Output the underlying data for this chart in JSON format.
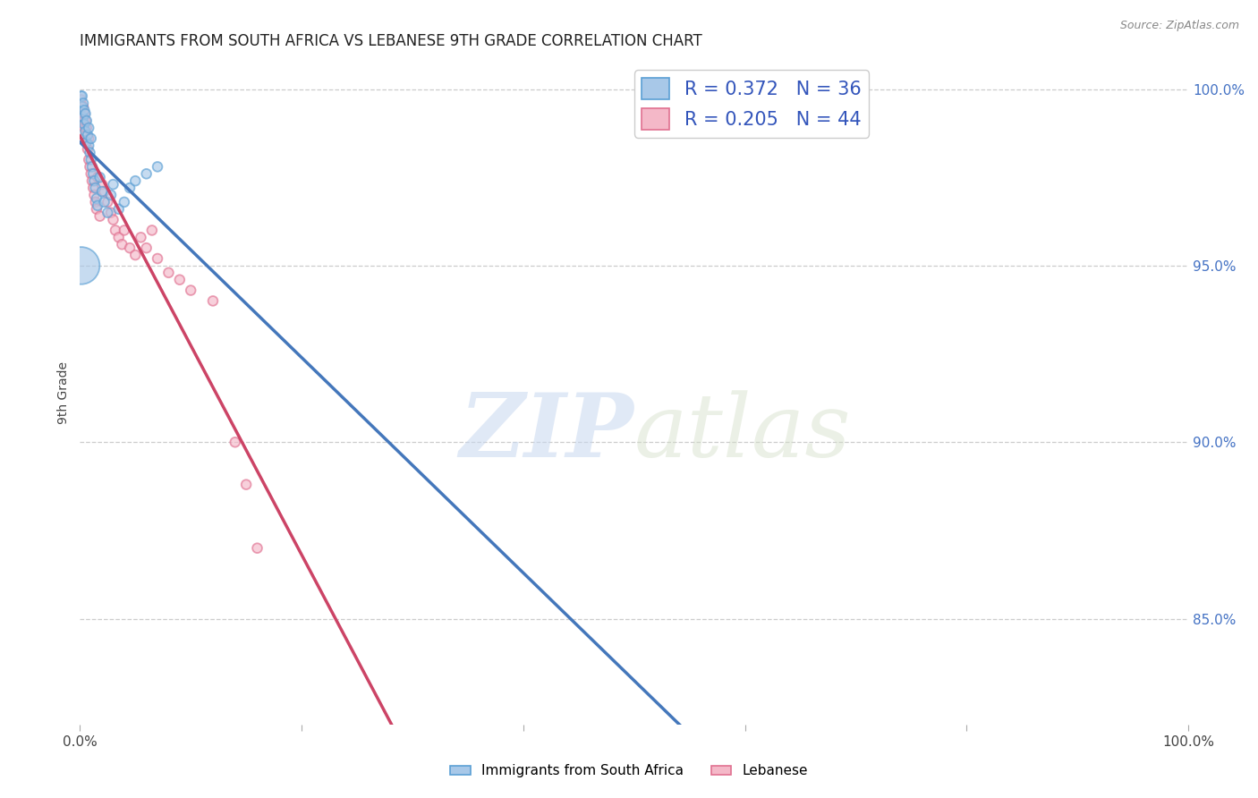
{
  "title": "IMMIGRANTS FROM SOUTH AFRICA VS LEBANESE 9TH GRADE CORRELATION CHART",
  "source": "Source: ZipAtlas.com",
  "ylabel": "9th Grade",
  "ylabel_right_ticks": [
    "100.0%",
    "95.0%",
    "90.0%",
    "85.0%"
  ],
  "ylabel_right_positions": [
    1.0,
    0.95,
    0.9,
    0.85
  ],
  "legend_blue_label": "R = 0.372   N = 36",
  "legend_pink_label": "R = 0.205   N = 44",
  "blue_color": "#a8c8e8",
  "pink_color": "#f4b8c8",
  "blue_edge_color": "#5a9fd4",
  "pink_edge_color": "#e07090",
  "blue_line_color": "#4477bb",
  "pink_line_color": "#cc4466",
  "watermark_zip_color": "#d0dff0",
  "watermark_atlas_color": "#c8d8b8",
  "grid_color": "#cccccc",
  "background_color": "#ffffff",
  "title_fontsize": 12,
  "xlim": [
    0.0,
    1.0
  ],
  "ylim": [
    0.82,
    1.008
  ],
  "blue_scatter_x": [
    0.001,
    0.002,
    0.002,
    0.003,
    0.003,
    0.004,
    0.004,
    0.005,
    0.005,
    0.006,
    0.006,
    0.007,
    0.008,
    0.008,
    0.009,
    0.01,
    0.01,
    0.011,
    0.012,
    0.013,
    0.014,
    0.015,
    0.016,
    0.018,
    0.02,
    0.022,
    0.025,
    0.028,
    0.03,
    0.035,
    0.04,
    0.045,
    0.05,
    0.06,
    0.07,
    0.001
  ],
  "blue_scatter_y": [
    0.998,
    0.995,
    0.998,
    0.992,
    0.996,
    0.99,
    0.994,
    0.988,
    0.993,
    0.985,
    0.991,
    0.987,
    0.984,
    0.989,
    0.982,
    0.98,
    0.986,
    0.978,
    0.976,
    0.974,
    0.972,
    0.969,
    0.967,
    0.975,
    0.971,
    0.968,
    0.965,
    0.97,
    0.973,
    0.966,
    0.968,
    0.972,
    0.974,
    0.976,
    0.978,
    0.95
  ],
  "blue_scatter_sizes": [
    60,
    60,
    60,
    60,
    60,
    60,
    60,
    60,
    60,
    60,
    60,
    60,
    60,
    60,
    60,
    60,
    60,
    60,
    60,
    60,
    60,
    60,
    60,
    60,
    60,
    60,
    60,
    60,
    60,
    60,
    60,
    60,
    60,
    60,
    60,
    900
  ],
  "pink_scatter_x": [
    0.001,
    0.002,
    0.003,
    0.003,
    0.004,
    0.004,
    0.005,
    0.005,
    0.006,
    0.006,
    0.007,
    0.008,
    0.008,
    0.009,
    0.01,
    0.011,
    0.012,
    0.013,
    0.014,
    0.015,
    0.016,
    0.018,
    0.02,
    0.022,
    0.025,
    0.028,
    0.03,
    0.032,
    0.035,
    0.038,
    0.04,
    0.045,
    0.05,
    0.055,
    0.06,
    0.065,
    0.07,
    0.08,
    0.09,
    0.1,
    0.12,
    0.14,
    0.15,
    0.16
  ],
  "pink_scatter_y": [
    0.997,
    0.993,
    0.991,
    0.995,
    0.989,
    0.993,
    0.987,
    0.991,
    0.985,
    0.989,
    0.983,
    0.98,
    0.986,
    0.978,
    0.976,
    0.974,
    0.972,
    0.97,
    0.968,
    0.966,
    0.975,
    0.964,
    0.973,
    0.971,
    0.968,
    0.965,
    0.963,
    0.96,
    0.958,
    0.956,
    0.96,
    0.955,
    0.953,
    0.958,
    0.955,
    0.96,
    0.952,
    0.948,
    0.946,
    0.943,
    0.94,
    0.9,
    0.888,
    0.87
  ],
  "pink_scatter_sizes": [
    60,
    60,
    60,
    60,
    60,
    60,
    60,
    60,
    60,
    60,
    60,
    60,
    60,
    60,
    60,
    60,
    60,
    60,
    60,
    60,
    60,
    60,
    60,
    60,
    60,
    60,
    60,
    60,
    60,
    60,
    60,
    60,
    60,
    60,
    60,
    60,
    60,
    60,
    60,
    60,
    60,
    60,
    60,
    60
  ]
}
